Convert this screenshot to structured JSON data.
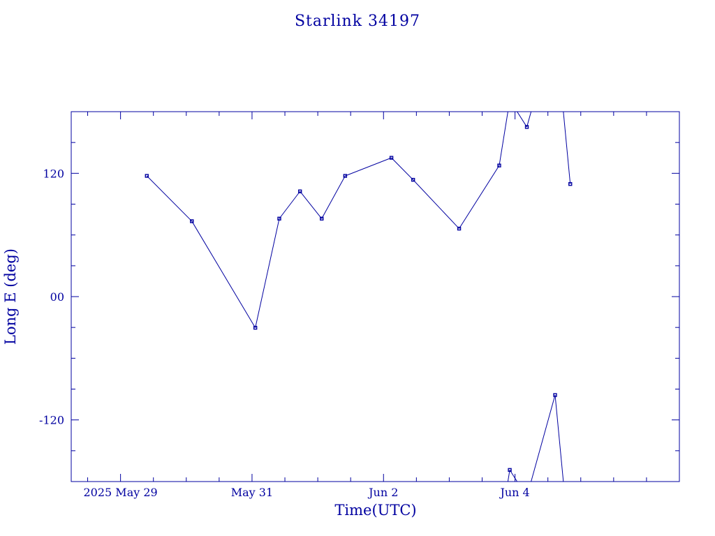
{
  "chart_data": {
    "type": "line",
    "title": "Starlink 34197",
    "xlabel": "Time(UTC)",
    "ylabel": "Long E (deg)",
    "x_range": [
      "2025-05-28 06:00",
      "2025-06-06 12:00"
    ],
    "ylim": [
      -180,
      180
    ],
    "y_ticks": [
      {
        "value": 120,
        "label": "120"
      },
      {
        "value": 0,
        "label": "00"
      },
      {
        "value": -120,
        "label": "-120"
      }
    ],
    "y_minor_step": 30,
    "x_ticks": [
      {
        "value": "2025-05-29 00:00",
        "label": "2025 May 29"
      },
      {
        "value": "2025-05-31 00:00",
        "label": "May 31"
      },
      {
        "value": "2025-06-02 00:00",
        "label": "Jun  2"
      },
      {
        "value": "2025-06-04 00:00",
        "label": "Jun  4"
      }
    ],
    "x_minor_step_hours": 12,
    "grid": false,
    "wrap_longitude": true,
    "color": "#0000a0",
    "series": [
      {
        "points": [
          {
            "t": "2025-05-29 09:36",
            "lon": 117.5
          },
          {
            "t": "2025-05-30 02:02",
            "lon": 73.4
          },
          {
            "t": "2025-05-31 01:12",
            "lon": -30.3
          },
          {
            "t": "2025-05-31 09:57",
            "lon": 75.9
          },
          {
            "t": "2025-05-31 17:31",
            "lon": 102.4
          },
          {
            "t": "2025-06-01 01:26",
            "lon": 75.9
          },
          {
            "t": "2025-06-01 10:00",
            "lon": 117.5
          },
          {
            "t": "2025-06-02 02:53",
            "lon": 135.1
          },
          {
            "t": "2025-06-02 10:48",
            "lon": 113.7
          },
          {
            "t": "2025-06-03 03:36",
            "lon": 66.2
          },
          {
            "t": "2025-06-03 18:14",
            "lon": 127.6
          },
          {
            "t": "2025-06-03 22:05",
            "lon": -168.7
          },
          {
            "t": "2025-06-04 04:19",
            "lon": 165.1
          },
          {
            "t": "2025-06-04 14:38",
            "lon": -95.8
          },
          {
            "t": "2025-06-04 20:10",
            "lon": 109.6
          }
        ]
      }
    ]
  }
}
